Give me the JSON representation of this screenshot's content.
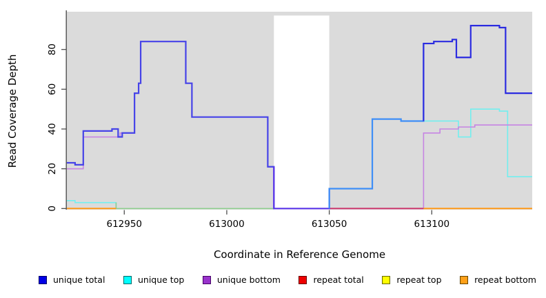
{
  "figure": {
    "background": "#ffffff"
  },
  "chart_data": {
    "type": "line",
    "subtype": "step",
    "title": "",
    "xlabel": "Coordinate in Reference Genome",
    "ylabel": "Read Coverage Depth",
    "x_ticks": [
      612950,
      613000,
      613050,
      613100
    ],
    "y_ticks": [
      0,
      20,
      40,
      60,
      80
    ],
    "x_range": [
      612922,
      613149
    ],
    "y_range": [
      0,
      96
    ],
    "grid": "off",
    "panel_bg": "#DBDBDB",
    "axis_color": "#4D4D4D",
    "no_data_region": {
      "from": 613023,
      "to": 613050
    },
    "series": [
      {
        "name": "unique top",
        "color": "#72EFEF",
        "width": 1.6,
        "points": [
          [
            612922,
            4
          ],
          [
            612926,
            3
          ],
          [
            612946,
            0
          ],
          [
            613050,
            10
          ],
          [
            613071,
            45
          ],
          [
            613085,
            44
          ],
          [
            613113,
            36
          ],
          [
            613119,
            50
          ],
          [
            613133,
            49
          ],
          [
            613137,
            16
          ],
          [
            613149,
            16
          ]
        ],
        "color_segments": [
          {
            "from": 612922,
            "to": 612946,
            "color": "#72EFEF"
          },
          {
            "from": 612946,
            "to": 613050,
            "color": "#8FCE8F"
          },
          {
            "from": 613050,
            "to": 613149,
            "color": "#72EFEF"
          }
        ]
      },
      {
        "name": "unique bottom",
        "color": "#C684E3",
        "width": 1.6,
        "points": [
          [
            612922,
            20
          ],
          [
            612930,
            36
          ],
          [
            612948,
            38
          ],
          [
            612955,
            58
          ],
          [
            612957,
            63
          ],
          [
            612958,
            84
          ],
          [
            612980,
            63
          ],
          [
            612983,
            46
          ],
          [
            613020,
            21
          ],
          [
            613023,
            0
          ],
          [
            613096,
            38
          ],
          [
            613104,
            40
          ],
          [
            613113,
            41
          ],
          [
            613121,
            42
          ],
          [
            613149,
            42
          ]
        ],
        "color_segments": [
          {
            "from": 612922,
            "to": 613149,
            "color": "#C684E3"
          }
        ]
      },
      {
        "name": "repeat total",
        "color": "#CC3A6E",
        "width": 2,
        "points": [
          [
            612922,
            0
          ],
          [
            613149,
            0
          ]
        ]
      },
      {
        "name": "repeat top",
        "color": "#EFEF30",
        "width": 2,
        "points": [
          [
            612922,
            0
          ],
          [
            613149,
            0
          ]
        ]
      },
      {
        "name": "repeat bottom",
        "color": "#FF9919",
        "width": 2,
        "points": [
          [
            612922,
            0
          ],
          [
            613149,
            0
          ]
        ]
      },
      {
        "name": "unique total",
        "color": "#2B2BE0",
        "width": 2.2,
        "points": [
          [
            612922,
            23
          ],
          [
            612926,
            22
          ],
          [
            612930,
            39
          ],
          [
            612944,
            40
          ],
          [
            612947,
            36
          ],
          [
            612949,
            38
          ],
          [
            612955,
            58
          ],
          [
            612957,
            63
          ],
          [
            612958,
            84
          ],
          [
            612980,
            63
          ],
          [
            612983,
            46
          ],
          [
            613020,
            21
          ],
          [
            613023,
            0
          ],
          [
            613050,
            10
          ],
          [
            613071,
            45
          ],
          [
            613085,
            44
          ],
          [
            613096,
            83
          ],
          [
            613101,
            84
          ],
          [
            613110,
            85
          ],
          [
            613112,
            76
          ],
          [
            613119,
            92
          ],
          [
            613133,
            91
          ],
          [
            613136,
            58
          ],
          [
            613149,
            58
          ]
        ],
        "color_segments": [
          {
            "from": 612922,
            "to": 613023,
            "color": "#4643E8"
          },
          {
            "from": 613023,
            "to": 613050,
            "color": "#5A35E8"
          },
          {
            "from": 613050,
            "to": 613096,
            "color": "#3E8EF7"
          },
          {
            "from": 613096,
            "to": 613149,
            "color": "#2B2BE0"
          }
        ]
      }
    ],
    "baseline_segments": [
      {
        "from": 612922,
        "to": 612946,
        "color": "#FF9919"
      },
      {
        "from": 613050,
        "to": 613096,
        "color": "#CC3A6E"
      },
      {
        "from": 613096,
        "to": 613149,
        "color": "#FF9919"
      }
    ],
    "draw_order": [
      "unique top",
      "unique bottom",
      "baseline",
      "unique total"
    ]
  },
  "legend": {
    "position": "bottom",
    "items": [
      {
        "label": "unique total",
        "color": "#0000E6",
        "border": "#000066"
      },
      {
        "label": "unique top",
        "color": "#00FFFF",
        "border": "#006666"
      },
      {
        "label": "unique bottom",
        "color": "#9933CC",
        "border": "#440066"
      },
      {
        "label": "repeat total",
        "color": "#EE0000",
        "border": "#660000"
      },
      {
        "label": "repeat top",
        "color": "#FFFF00",
        "border": "#666600"
      },
      {
        "label": "repeat bottom",
        "color": "#FFA019",
        "border": "#664400"
      }
    ]
  }
}
